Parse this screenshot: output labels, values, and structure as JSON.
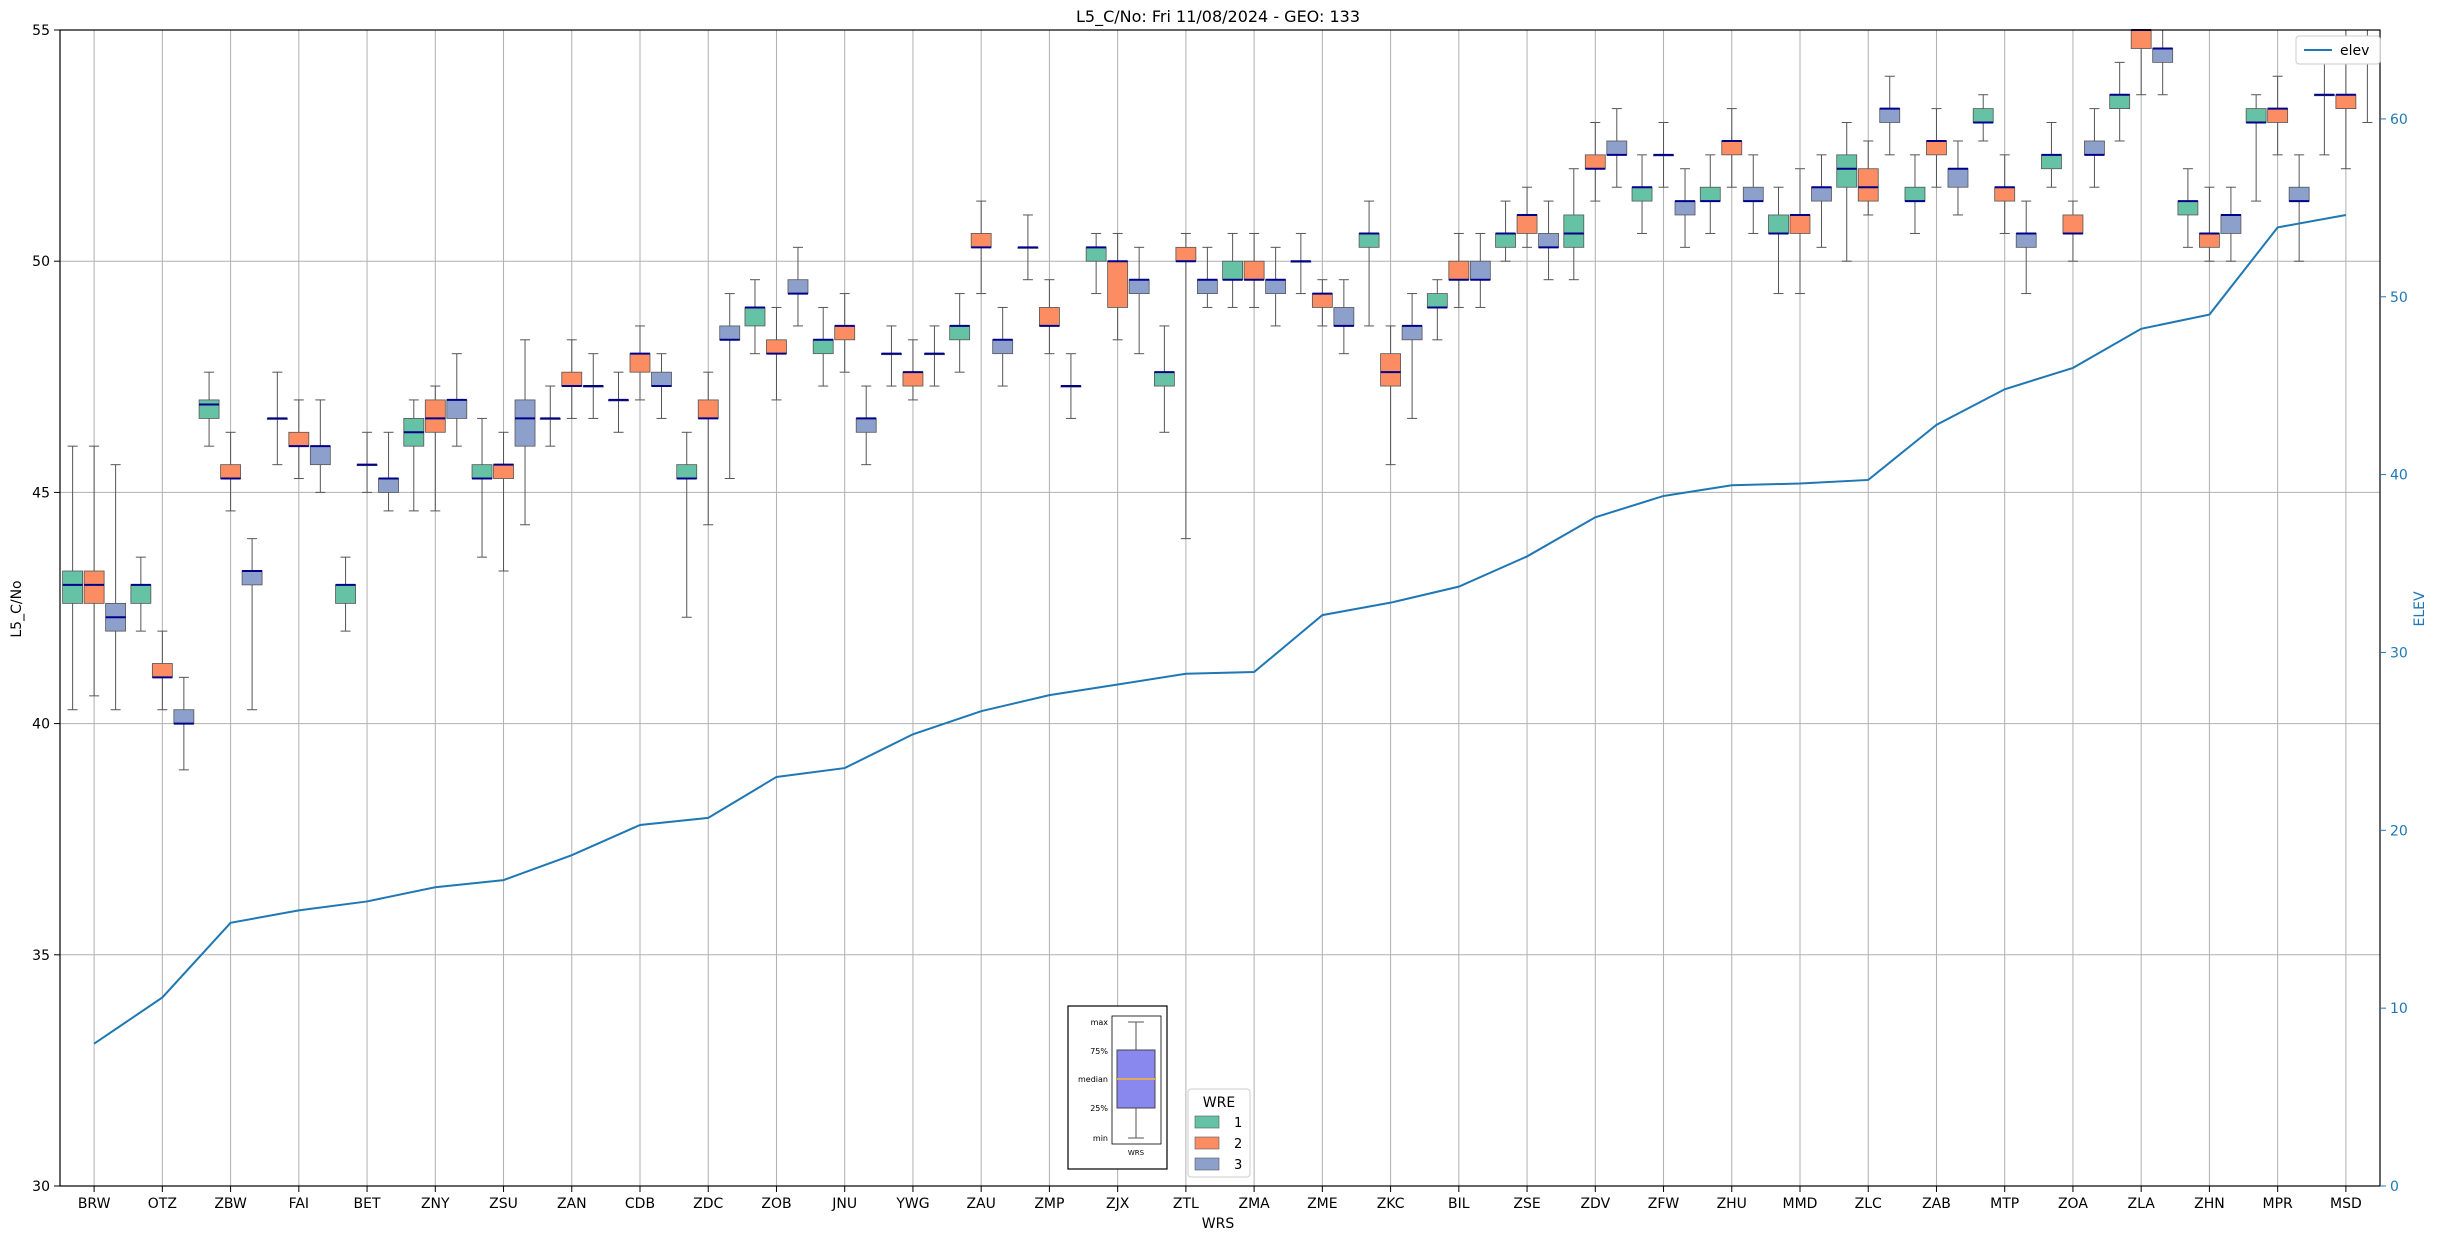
{
  "chart_data": {
    "type": "box",
    "title": "L5_C/No: Fri 11/08/2024 - GEO: 133",
    "xlabel": "WRS",
    "ylabel": "L5_C/No",
    "y2label": "ELEV",
    "ylim": [
      30,
      55
    ],
    "y2lim": [
      0,
      65
    ],
    "yticks": [
      30,
      35,
      40,
      45,
      50,
      55
    ],
    "y2ticks": [
      0,
      10,
      20,
      30,
      40,
      50,
      60
    ],
    "grid": true,
    "categories": [
      "BRW",
      "OTZ",
      "ZBW",
      "FAI",
      "BET",
      "ZNY",
      "ZSU",
      "ZAN",
      "CDB",
      "ZDC",
      "ZOB",
      "JNU",
      "YWG",
      "ZAU",
      "ZMP",
      "ZJX",
      "ZTL",
      "ZMA",
      "ZME",
      "ZKC",
      "BIL",
      "ZSE",
      "ZDV",
      "ZFW",
      "ZHU",
      "MMD",
      "ZLC",
      "ZAB",
      "MTP",
      "ZOA",
      "ZLA",
      "ZHN",
      "MPR",
      "MSD"
    ],
    "legend": {
      "title": "WRE",
      "placement": "lower-center",
      "entries": [
        {
          "label": "1",
          "color": "#66c2a5"
        },
        {
          "label": "2",
          "color": "#fc8d62"
        },
        {
          "label": "3",
          "color": "#8da0cb"
        }
      ]
    },
    "line_legend": {
      "label": "elev",
      "placement": "upper-right",
      "color": "#1f77b4"
    },
    "inset_key": {
      "labels": [
        "max",
        "75%",
        "median",
        "25%",
        "min"
      ],
      "xlabel": "WRS",
      "box_color": "#8888ee",
      "median_color": "#e0a860"
    },
    "colors": {
      "wre1": "#66c2a5",
      "wre2": "#fc8d62",
      "wre3": "#8da0cb",
      "median": "#00008b",
      "elev_line": "#1f77b4",
      "whisker": "#555555"
    },
    "series": [
      {
        "name": "1",
        "boxes": [
          [
            0,
            40.3,
            42.6,
            43.0,
            43.3,
            46.0
          ],
          [
            1,
            42.0,
            42.6,
            43.0,
            43.0,
            43.6
          ],
          [
            2,
            46.0,
            46.6,
            46.9,
            47.0,
            47.6
          ],
          [
            3,
            45.6,
            46.6,
            46.6,
            46.6,
            47.6
          ],
          [
            4,
            42.0,
            42.6,
            43.0,
            43.0,
            43.6
          ],
          [
            5,
            44.6,
            46.0,
            46.3,
            46.6,
            47.0
          ],
          [
            6,
            43.6,
            45.3,
            45.3,
            45.6,
            46.6
          ],
          [
            7,
            46.0,
            46.6,
            46.6,
            46.6,
            47.3
          ],
          [
            8,
            46.3,
            47.0,
            47.0,
            47.0,
            47.6
          ],
          [
            9,
            42.3,
            45.3,
            45.3,
            45.6,
            46.3
          ],
          [
            10,
            48.0,
            48.6,
            49.0,
            49.0,
            49.6
          ],
          [
            11,
            47.3,
            48.0,
            48.3,
            48.3,
            49.0
          ],
          [
            12,
            47.3,
            48.0,
            48.0,
            48.0,
            48.6
          ],
          [
            13,
            47.6,
            48.3,
            48.6,
            48.6,
            49.3
          ],
          [
            14,
            49.6,
            50.3,
            50.3,
            50.3,
            51.0
          ],
          [
            15,
            49.3,
            50.0,
            50.3,
            50.3,
            50.6
          ],
          [
            16,
            46.3,
            47.3,
            47.6,
            47.6,
            48.6
          ],
          [
            17,
            49.0,
            49.6,
            49.6,
            50.0,
            50.6
          ],
          [
            18,
            49.3,
            50.0,
            50.0,
            50.0,
            50.6
          ],
          [
            19,
            48.6,
            50.3,
            50.6,
            50.6,
            51.3
          ],
          [
            20,
            48.3,
            49.0,
            49.0,
            49.3,
            49.6
          ],
          [
            21,
            50.0,
            50.3,
            50.6,
            50.6,
            51.3
          ],
          [
            22,
            49.6,
            50.3,
            50.6,
            51.0,
            52.0
          ],
          [
            23,
            50.6,
            51.3,
            51.6,
            51.6,
            52.3
          ],
          [
            24,
            50.6,
            51.3,
            51.3,
            51.6,
            52.3
          ],
          [
            25,
            49.3,
            50.6,
            50.6,
            51.0,
            51.6
          ],
          [
            26,
            50.0,
            51.6,
            52.0,
            52.3,
            53.0
          ],
          [
            27,
            50.6,
            51.3,
            51.3,
            51.6,
            52.3
          ],
          [
            28,
            52.6,
            53.0,
            53.0,
            53.3,
            53.6
          ],
          [
            29,
            51.6,
            52.0,
            52.3,
            52.3,
            53.0
          ],
          [
            30,
            52.6,
            53.3,
            53.6,
            53.6,
            54.3
          ],
          [
            31,
            50.3,
            51.0,
            51.3,
            51.3,
            52.0
          ],
          [
            32,
            51.3,
            53.0,
            53.0,
            53.3,
            53.6
          ],
          [
            33,
            52.3,
            53.6,
            53.6,
            53.6,
            54.6
          ]
        ]
      },
      {
        "name": "2",
        "boxes": [
          [
            0,
            40.6,
            42.6,
            43.0,
            43.3,
            46.0
          ],
          [
            1,
            40.3,
            41.0,
            41.0,
            41.3,
            42.0
          ],
          [
            2,
            44.6,
            45.3,
            45.3,
            45.6,
            46.3
          ],
          [
            3,
            45.3,
            46.0,
            46.0,
            46.3,
            47.0
          ],
          [
            4,
            45.0,
            45.6,
            45.6,
            45.6,
            46.3
          ],
          [
            5,
            44.6,
            46.3,
            46.6,
            47.0,
            47.3
          ],
          [
            6,
            43.3,
            45.3,
            45.6,
            45.6,
            46.3
          ],
          [
            7,
            46.6,
            47.3,
            47.3,
            47.6,
            48.3
          ],
          [
            8,
            47.0,
            47.6,
            48.0,
            48.0,
            48.6
          ],
          [
            9,
            44.3,
            46.6,
            46.6,
            47.0,
            47.6
          ],
          [
            10,
            47.0,
            48.0,
            48.0,
            48.3,
            49.0
          ],
          [
            11,
            47.6,
            48.3,
            48.6,
            48.6,
            49.3
          ],
          [
            12,
            47.0,
            47.3,
            47.6,
            47.6,
            48.3
          ],
          [
            13,
            49.3,
            50.3,
            50.3,
            50.6,
            51.3
          ],
          [
            14,
            48.0,
            48.6,
            48.6,
            49.0,
            49.6
          ],
          [
            15,
            48.3,
            49.0,
            50.0,
            50.0,
            50.6
          ],
          [
            16,
            44.0,
            50.0,
            50.0,
            50.3,
            50.6
          ],
          [
            17,
            49.0,
            49.6,
            49.6,
            50.0,
            50.6
          ],
          [
            18,
            48.6,
            49.0,
            49.3,
            49.3,
            49.6
          ],
          [
            19,
            45.6,
            47.3,
            47.6,
            48.0,
            48.6
          ],
          [
            20,
            49.0,
            49.6,
            49.6,
            50.0,
            50.6
          ],
          [
            21,
            50.3,
            50.6,
            51.0,
            51.0,
            51.6
          ],
          [
            22,
            51.3,
            52.0,
            52.0,
            52.3,
            53.0
          ],
          [
            23,
            51.6,
            52.3,
            52.3,
            52.3,
            53.0
          ],
          [
            24,
            51.6,
            52.3,
            52.6,
            52.6,
            53.3
          ],
          [
            25,
            49.3,
            50.6,
            51.0,
            51.0,
            52.0
          ],
          [
            26,
            51.0,
            51.3,
            51.6,
            52.0,
            52.6
          ],
          [
            27,
            51.6,
            52.3,
            52.6,
            52.6,
            53.3
          ],
          [
            28,
            50.6,
            51.3,
            51.6,
            51.6,
            52.3
          ],
          [
            29,
            50.0,
            50.6,
            50.6,
            51.0,
            51.3
          ],
          [
            30,
            53.6,
            54.6,
            55.0,
            55.0,
            55.0
          ],
          [
            31,
            50.0,
            50.3,
            50.6,
            50.6,
            51.6
          ],
          [
            32,
            52.3,
            53.0,
            53.3,
            53.3,
            54.0
          ],
          [
            33,
            52.0,
            53.3,
            53.6,
            53.6,
            55.0
          ]
        ]
      },
      {
        "name": "3",
        "boxes": [
          [
            0,
            40.3,
            42.0,
            42.3,
            42.6,
            45.6
          ],
          [
            1,
            39.0,
            40.0,
            40.0,
            40.3,
            41.0
          ],
          [
            2,
            40.3,
            43.0,
            43.3,
            43.3,
            44.0
          ],
          [
            3,
            45.0,
            45.6,
            46.0,
            46.0,
            47.0
          ],
          [
            4,
            44.6,
            45.0,
            45.3,
            45.3,
            46.3
          ],
          [
            5,
            46.0,
            46.6,
            47.0,
            47.0,
            48.0
          ],
          [
            6,
            44.3,
            46.0,
            46.6,
            47.0,
            48.3
          ],
          [
            7,
            46.6,
            47.3,
            47.3,
            47.3,
            48.0
          ],
          [
            8,
            46.6,
            47.3,
            47.3,
            47.6,
            48.0
          ],
          [
            9,
            45.3,
            48.3,
            48.3,
            48.6,
            49.3
          ],
          [
            10,
            48.6,
            49.3,
            49.3,
            49.6,
            50.3
          ],
          [
            11,
            45.6,
            46.3,
            46.6,
            46.6,
            47.3
          ],
          [
            12,
            47.3,
            48.0,
            48.0,
            48.0,
            48.6
          ],
          [
            13,
            47.3,
            48.0,
            48.3,
            48.3,
            49.0
          ],
          [
            14,
            46.6,
            47.3,
            47.3,
            47.3,
            48.0
          ],
          [
            15,
            48.0,
            49.3,
            49.6,
            49.6,
            50.3
          ],
          [
            16,
            49.0,
            49.3,
            49.6,
            49.6,
            50.3
          ],
          [
            17,
            48.6,
            49.3,
            49.6,
            49.6,
            50.3
          ],
          [
            18,
            48.0,
            48.6,
            48.6,
            49.0,
            49.6
          ],
          [
            19,
            46.6,
            48.3,
            48.6,
            48.6,
            49.3
          ],
          [
            20,
            49.0,
            49.6,
            49.6,
            50.0,
            50.6
          ],
          [
            21,
            49.6,
            50.3,
            50.3,
            50.6,
            51.3
          ],
          [
            22,
            51.6,
            52.3,
            52.3,
            52.6,
            53.3
          ],
          [
            23,
            50.3,
            51.0,
            51.3,
            51.3,
            52.0
          ],
          [
            24,
            50.6,
            51.3,
            51.3,
            51.6,
            52.3
          ],
          [
            25,
            50.3,
            51.3,
            51.6,
            51.6,
            52.3
          ],
          [
            26,
            52.3,
            53.0,
            53.3,
            53.3,
            54.0
          ],
          [
            27,
            51.0,
            51.6,
            52.0,
            52.0,
            52.6
          ],
          [
            28,
            49.3,
            50.3,
            50.6,
            50.6,
            51.3
          ],
          [
            29,
            51.6,
            52.3,
            52.3,
            52.6,
            53.3
          ],
          [
            30,
            53.6,
            54.3,
            54.6,
            54.6,
            55.0
          ],
          [
            31,
            50.0,
            50.6,
            51.0,
            51.0,
            51.6
          ],
          [
            32,
            50.0,
            51.3,
            51.3,
            51.6,
            52.3
          ],
          [
            33,
            53.0,
            54.3,
            54.3,
            54.6,
            55.0
          ]
        ]
      }
    ],
    "elev_series": {
      "name": "elev",
      "values": [
        8.0,
        10.6,
        14.8,
        15.5,
        16.0,
        16.8,
        17.2,
        18.6,
        20.3,
        20.7,
        23.0,
        23.5,
        25.4,
        26.7,
        27.6,
        28.2,
        28.8,
        28.9,
        32.1,
        32.8,
        33.7,
        35.4,
        37.6,
        38.8,
        39.4,
        39.5,
        39.7,
        42.8,
        44.8,
        46.0,
        48.2,
        49.0,
        53.9,
        54.6
      ]
    }
  }
}
